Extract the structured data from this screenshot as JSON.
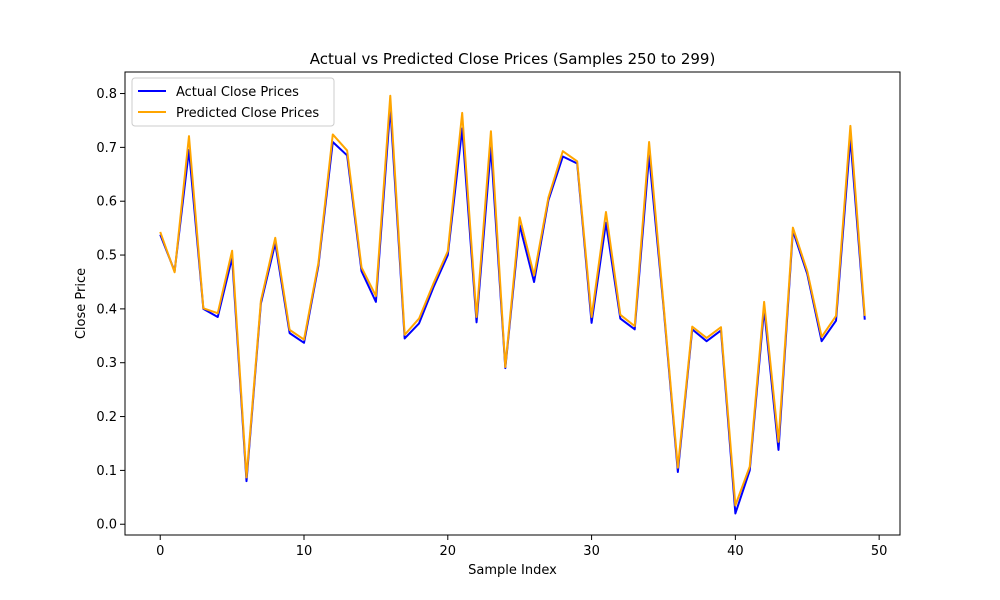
{
  "chart_data": {
    "type": "line",
    "title": "Actual vs Predicted Close Prices (Samples 250 to 299)",
    "xlabel": "Sample Index",
    "ylabel": "Close Price",
    "xlim": [
      -2.45,
      51.45
    ],
    "ylim": [
      -0.02,
      0.84
    ],
    "xticks": [
      0,
      10,
      20,
      30,
      40,
      50
    ],
    "yticks": [
      0.0,
      0.1,
      0.2,
      0.3,
      0.4,
      0.5,
      0.6,
      0.7,
      0.8
    ],
    "xtick_labels": [
      "0",
      "10",
      "20",
      "30",
      "40",
      "50"
    ],
    "ytick_labels": [
      "0.0",
      "0.1",
      "0.2",
      "0.3",
      "0.4",
      "0.5",
      "0.6",
      "0.7",
      "0.8"
    ],
    "grid": false,
    "legend_position": "upper-left",
    "x": [
      0,
      1,
      2,
      3,
      4,
      5,
      6,
      7,
      8,
      9,
      10,
      11,
      12,
      13,
      14,
      15,
      16,
      17,
      18,
      19,
      20,
      21,
      22,
      23,
      24,
      25,
      26,
      27,
      28,
      29,
      30,
      31,
      32,
      33,
      34,
      35,
      36,
      37,
      38,
      39,
      40,
      41,
      42,
      43,
      44,
      45,
      46,
      47,
      48,
      49
    ],
    "series": [
      {
        "name": "Actual Close Prices",
        "color": "#0000ff",
        "values": [
          0.538,
          0.47,
          0.695,
          0.4,
          0.385,
          0.495,
          0.08,
          0.41,
          0.522,
          0.355,
          0.337,
          0.48,
          0.71,
          0.685,
          0.47,
          0.413,
          0.775,
          0.345,
          0.373,
          0.44,
          0.5,
          0.735,
          0.375,
          0.7,
          0.29,
          0.555,
          0.45,
          0.602,
          0.683,
          0.67,
          0.374,
          0.56,
          0.382,
          0.362,
          0.685,
          0.405,
          0.097,
          0.362,
          0.34,
          0.36,
          0.02,
          0.1,
          0.4,
          0.138,
          0.545,
          0.465,
          0.34,
          0.378,
          0.717,
          0.38
        ]
      },
      {
        "name": "Predicted Close Prices",
        "color": "#ffa500",
        "values": [
          0.543,
          0.468,
          0.721,
          0.401,
          0.392,
          0.508,
          0.087,
          0.415,
          0.532,
          0.361,
          0.343,
          0.485,
          0.724,
          0.694,
          0.477,
          0.424,
          0.796,
          0.352,
          0.382,
          0.447,
          0.507,
          0.764,
          0.385,
          0.73,
          0.292,
          0.57,
          0.462,
          0.607,
          0.693,
          0.674,
          0.385,
          0.58,
          0.389,
          0.368,
          0.71,
          0.41,
          0.105,
          0.367,
          0.346,
          0.366,
          0.035,
          0.107,
          0.413,
          0.153,
          0.551,
          0.47,
          0.348,
          0.387,
          0.74,
          0.387
        ]
      }
    ]
  }
}
